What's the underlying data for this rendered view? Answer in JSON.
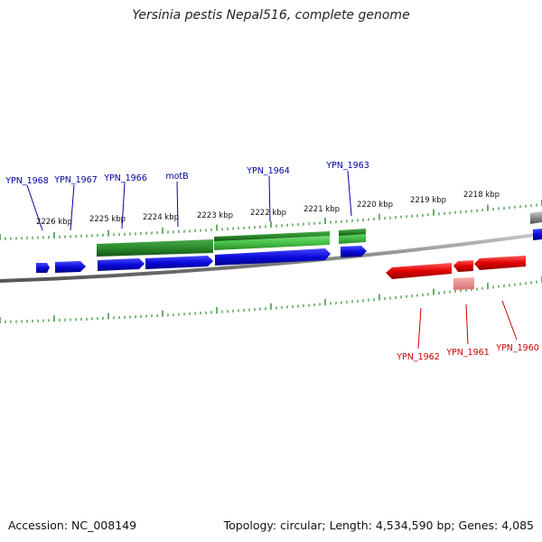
{
  "header": {
    "title": "Yersinia pestis Nepal516, complete genome"
  },
  "footer": {
    "accession": "Accession: NC_008149",
    "summary": "Topology: circular; Length: 4,534,590 bp; Genes: 4,085"
  },
  "colors": {
    "forward_gene": "#0a0adc",
    "reverse_gene": "#e00000",
    "reverse_gene_light": "#e88a8a",
    "feature_dark": "#2a8a2a",
    "feature_light": "#4cc94c",
    "backbone": "#8a8a8a",
    "ticks": "#2a8a2a",
    "label_forward": "#0000a0",
    "label_reverse": "#cc0000"
  },
  "scale_labels": [
    "2226 kbp",
    "2225 kbp",
    "2224 kbp",
    "2223 kbp",
    "2222 kbp",
    "2221 kbp",
    "2220 kbp",
    "2219 kbp",
    "2218 kbp"
  ],
  "forward_gene_labels": [
    "YPN_1968",
    "YPN_1967",
    "YPN_1966",
    "motB",
    "YPN_1964",
    "YPN_1963"
  ],
  "reverse_gene_labels": [
    "YPN_1962",
    "YPN_1961",
    "YPN_1960"
  ]
}
